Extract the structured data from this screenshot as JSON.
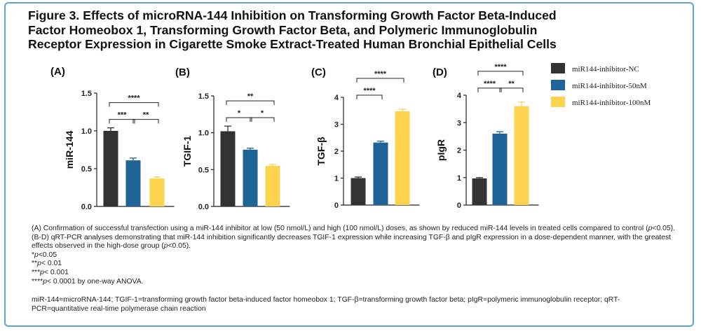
{
  "title": {
    "line1": "Figure 3. Effects of microRNA-144 Inhibition on Transforming Growth Factor Beta-Induced",
    "line2": "Factor Homeobox 1, Transforming Growth Factor Beta, and Polymeric Immunoglobulin",
    "line3": "Receptor Expression in Cigarette Smoke Extract-Treated Human Bronchial Epithelial Cells"
  },
  "colors": {
    "nc": "#333333",
    "low": "#1f6496",
    "high": "#fdd24e",
    "frame": "#5aa6cf"
  },
  "chart_data": [
    {
      "type": "bar",
      "panel": "(A)",
      "ylabel": "miR-144",
      "categories": [
        "miR144-inhibitor-NC",
        "miR144-inhibitor-50nM",
        "miR144-inhibitor-100nM"
      ],
      "values": [
        1.0,
        0.61,
        0.37
      ],
      "errors": [
        0.04,
        0.03,
        0.02
      ],
      "ylim": [
        0,
        1.5
      ],
      "yticks": [
        0.0,
        0.5,
        1.0,
        1.5
      ],
      "brackets": [
        {
          "from": 0,
          "to": 1,
          "label": "***",
          "level": 1
        },
        {
          "from": 1,
          "to": 2,
          "label": "**",
          "level": 1
        },
        {
          "from": 0,
          "to": 2,
          "label": "****",
          "level": 2
        }
      ]
    },
    {
      "type": "bar",
      "panel": "(B)",
      "ylabel": "TGIF-1",
      "categories": [
        "miR144-inhibitor-NC",
        "miR144-inhibitor-50nM",
        "miR144-inhibitor-100nM"
      ],
      "values": [
        1.02,
        0.77,
        0.55
      ],
      "errors": [
        0.07,
        0.02,
        0.02
      ],
      "ylim": [
        0,
        1.5
      ],
      "yticks": [
        0.0,
        0.5,
        1.0,
        1.5
      ],
      "brackets": [
        {
          "from": 0,
          "to": 1,
          "label": "*",
          "level": 1
        },
        {
          "from": 1,
          "to": 2,
          "label": "*",
          "level": 1
        },
        {
          "from": 0,
          "to": 2,
          "label": "**",
          "level": 2
        }
      ]
    },
    {
      "type": "bar",
      "panel": "(C)",
      "ylabel": "TGF-β",
      "categories": [
        "miR144-inhibitor-NC",
        "miR144-inhibitor-50nM",
        "miR144-inhibitor-100nM"
      ],
      "values": [
        1.0,
        2.32,
        3.48
      ],
      "errors": [
        0.04,
        0.05,
        0.08
      ],
      "ylim": [
        0,
        4
      ],
      "yticks": [
        0,
        1,
        2,
        3,
        4
      ],
      "brackets": [
        {
          "from": 0,
          "to": 1,
          "label": "****",
          "level": 1
        },
        {
          "from": 0,
          "to": 2,
          "label": "****",
          "level": 2
        }
      ]
    },
    {
      "type": "bar",
      "panel": "(D)",
      "ylabel": "pIgR",
      "categories": [
        "miR144-inhibitor-NC",
        "miR144-inhibitor-50nM",
        "miR144-inhibitor-100nM"
      ],
      "values": [
        0.97,
        2.6,
        3.6
      ],
      "errors": [
        0.03,
        0.07,
        0.15
      ],
      "ylim": [
        0,
        4
      ],
      "yticks": [
        0,
        1,
        2,
        3,
        4
      ],
      "brackets": [
        {
          "from": 0,
          "to": 1,
          "label": "****",
          "level": 1
        },
        {
          "from": 1,
          "to": 2,
          "label": "**",
          "level": 1
        },
        {
          "from": 0,
          "to": 2,
          "label": "****",
          "level": 2
        }
      ]
    }
  ],
  "legend": [
    {
      "label": "miR144-inhibitor-NC"
    },
    {
      "label": "miR144-inhibitor-50nM"
    },
    {
      "label": "miR144-inhibitor-100nM"
    }
  ],
  "caption": {
    "a_text": "(A) Confirmation of successful transfection using a miR-144 inhibitor at low (50 nmol/L) and high (100 nmol/L) doses, as shown by reduced miR-144 levels in treated cells compared to control (",
    "a_p": "p",
    "a_end": "<0.05).",
    "bd_text": "(B-D) qRT-PCR analyses demonstrating that miR-144 inhibition significantly decreases TGIF-1 expression while increasing TGF-β and pIgR expression in a dose-dependent manner, with the greatest effects observed in the high-dose group (",
    "bd_p": "p",
    "bd_end": "<0.05).",
    "sig1_star": "*",
    "sig1_p": "p",
    "sig1_val": "<0.05",
    "sig2_star": "**",
    "sig2_p": "p",
    "sig2_val": "< 0.01",
    "sig3_star": "***",
    "sig3_p": "p",
    "sig3_val": "< 0.001",
    "sig4_star": "****",
    "sig4_p": "p",
    "sig4_val": "< 0.0001 by one-way ANOVA.",
    "abbrev": "miR-144=microRNA-144; TGIF-1=transforming growth factor beta-induced factor homeobox 1; TGF-β=transforming growth factor beta; pIgR=polymeric immunoglobulin receptor; qRT-PCR=quantitative real-time polymerase chain reaction"
  }
}
